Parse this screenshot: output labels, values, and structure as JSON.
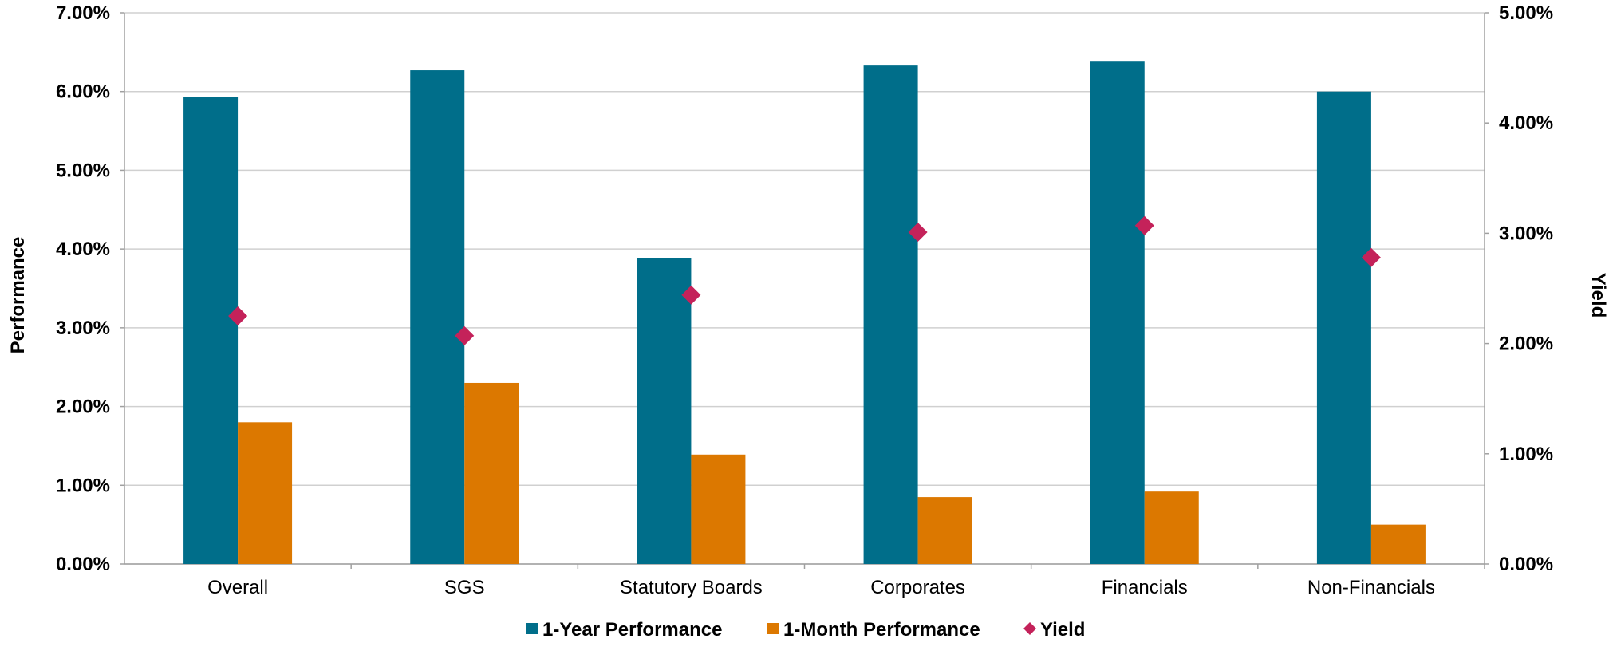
{
  "chart_data": {
    "type": "bar",
    "categories": [
      "Overall",
      "SGS",
      "Statutory Boards",
      "Corporates",
      "Financials",
      "Non-Financials"
    ],
    "series": [
      {
        "name": "1-Year Performance",
        "kind": "bar",
        "axis": "left",
        "color": "#006e8a",
        "values": [
          5.93,
          6.27,
          3.88,
          6.33,
          6.38,
          6.0
        ]
      },
      {
        "name": "1-Month Performance",
        "kind": "bar",
        "axis": "left",
        "color": "#dc7800",
        "values": [
          1.8,
          2.3,
          1.39,
          0.85,
          0.92,
          0.5
        ]
      },
      {
        "name": "Yield",
        "kind": "scatter",
        "marker": "diamond",
        "axis": "right",
        "color": "#c4225a",
        "values": [
          2.25,
          2.07,
          2.44,
          3.01,
          3.07,
          2.78
        ]
      }
    ],
    "ylabel": "Performance",
    "y2label": "Yield",
    "ylim": [
      0,
      7
    ],
    "y2lim": [
      0,
      5
    ],
    "yticks": [
      "0.00%",
      "1.00%",
      "2.00%",
      "3.00%",
      "4.00%",
      "5.00%",
      "6.00%",
      "7.00%"
    ],
    "y2ticks": [
      "0.00%",
      "1.00%",
      "2.00%",
      "3.00%",
      "4.00%",
      "5.00%"
    ],
    "grid": true,
    "legend_position": "bottom"
  }
}
